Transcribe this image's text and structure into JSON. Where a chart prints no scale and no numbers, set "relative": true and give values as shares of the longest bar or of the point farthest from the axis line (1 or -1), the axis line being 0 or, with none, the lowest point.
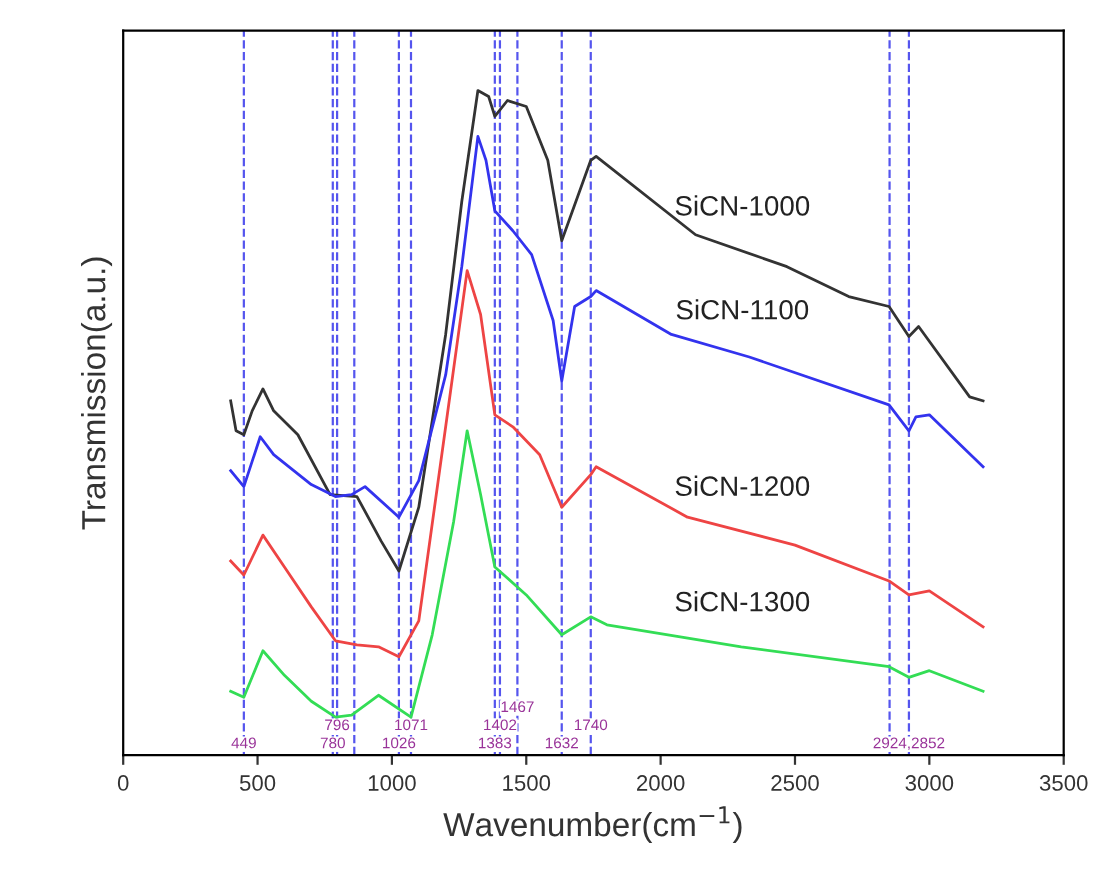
{
  "chart_data": {
    "type": "line",
    "relative": true,
    "xlabel": "Wavenumber(cm$^{−1}$)",
    "ylabel": "Transmission(a.u.)",
    "xlim": [
      0,
      3500
    ],
    "xticks": [
      0,
      500,
      1000,
      1500,
      2000,
      2500,
      3000,
      3500
    ],
    "tick_labels": "x",
    "grid": false,
    "marker": "none",
    "line_style": "solid",
    "series": [
      {
        "name": "SiCN-1000",
        "color": "#333333",
        "x": [
          400,
          420,
          449,
          480,
          520,
          560,
          650,
          770,
          870,
          960,
          1026,
          1100,
          1200,
          1260,
          1320,
          1360,
          1383,
          1430,
          1500,
          1580,
          1632,
          1740,
          1760,
          2130,
          2470,
          2700,
          2850,
          2924,
          2960,
          3150,
          3200
        ],
        "values": [
          0.533,
          0.488,
          0.482,
          0.518,
          0.551,
          0.518,
          0.482,
          0.392,
          0.389,
          0.322,
          0.277,
          0.373,
          0.633,
          0.833,
          1.0,
          0.991,
          0.961,
          0.985,
          0.976,
          0.895,
          0.774,
          0.895,
          0.901,
          0.783,
          0.735,
          0.69,
          0.675,
          0.63,
          0.645,
          0.539,
          0.533
        ]
      },
      {
        "name": "SiCN-1100",
        "color": "#3333ee",
        "x": [
          400,
          449,
          510,
          560,
          700,
          790,
          850,
          900,
          1026,
          1100,
          1200,
          1260,
          1320,
          1350,
          1383,
          1450,
          1520,
          1600,
          1632,
          1680,
          1740,
          1760,
          2040,
          2330,
          2850,
          2924,
          2950,
          3000,
          3200
        ],
        "values": [
          0.428,
          0.404,
          0.479,
          0.452,
          0.407,
          0.389,
          0.392,
          0.404,
          0.358,
          0.413,
          0.572,
          0.735,
          0.931,
          0.895,
          0.819,
          0.789,
          0.753,
          0.654,
          0.563,
          0.675,
          0.69,
          0.699,
          0.633,
          0.599,
          0.527,
          0.488,
          0.509,
          0.512,
          0.434
        ]
      },
      {
        "name": "SiCN-1200",
        "color": "#ee4444",
        "x": [
          400,
          449,
          520,
          600,
          700,
          790,
          870,
          950,
          1026,
          1100,
          1200,
          1280,
          1330,
          1383,
          1450,
          1550,
          1632,
          1740,
          1760,
          2100,
          2500,
          2850,
          2924,
          3000,
          3200
        ],
        "values": [
          0.292,
          0.271,
          0.331,
          0.283,
          0.223,
          0.172,
          0.166,
          0.163,
          0.148,
          0.202,
          0.494,
          0.729,
          0.663,
          0.512,
          0.494,
          0.452,
          0.373,
          0.422,
          0.434,
          0.358,
          0.316,
          0.262,
          0.241,
          0.247,
          0.193
        ]
      },
      {
        "name": "SiCN-1300",
        "color": "#33dd55",
        "x": [
          400,
          449,
          520,
          600,
          700,
          790,
          850,
          950,
          1071,
          1150,
          1230,
          1280,
          1330,
          1383,
          1500,
          1632,
          1740,
          1800,
          2300,
          2850,
          2924,
          3000,
          3200
        ],
        "values": [
          0.096,
          0.087,
          0.157,
          0.12,
          0.081,
          0.057,
          0.06,
          0.09,
          0.057,
          0.181,
          0.352,
          0.488,
          0.392,
          0.283,
          0.241,
          0.181,
          0.208,
          0.196,
          0.163,
          0.133,
          0.117,
          0.127,
          0.096
        ]
      }
    ],
    "ref_lines": [
      {
        "axis": "x",
        "value": 449,
        "label": "449",
        "color": "#5555ee",
        "line_style": "dashed"
      },
      {
        "axis": "x",
        "value": 780,
        "label": "780",
        "color": "#5555ee",
        "line_style": "dashed"
      },
      {
        "axis": "x",
        "value": 796,
        "label": "796",
        "color": "#5555ee",
        "line_style": "dashed"
      },
      {
        "axis": "x",
        "value": 860,
        "label": null,
        "color": "#5555ee",
        "line_style": "dashed"
      },
      {
        "axis": "x",
        "value": 1026,
        "label": "1026",
        "color": "#5555ee",
        "line_style": "dashed"
      },
      {
        "axis": "x",
        "value": 1071,
        "label": "1071",
        "color": "#5555ee",
        "line_style": "dashed"
      },
      {
        "axis": "x",
        "value": 1383,
        "label": "1383",
        "color": "#5555ee",
        "line_style": "dashed"
      },
      {
        "axis": "x",
        "value": 1402,
        "label": "1402",
        "color": "#5555ee",
        "line_style": "dashed"
      },
      {
        "axis": "x",
        "value": 1467,
        "label": "1467",
        "color": "#5555ee",
        "line_style": "dashed"
      },
      {
        "axis": "x",
        "value": 1632,
        "label": "1632",
        "color": "#5555ee",
        "line_style": "dashed"
      },
      {
        "axis": "x",
        "value": 1740,
        "label": "1740",
        "color": "#5555ee",
        "line_style": "dashed"
      },
      {
        "axis": "x",
        "value": 2852,
        "label": null,
        "color": "#5555ee",
        "line_style": "dashed"
      },
      {
        "axis": "x",
        "value": 2924,
        "label": "2924,2852",
        "color": "#5555ee",
        "line_style": "dashed"
      }
    ]
  }
}
